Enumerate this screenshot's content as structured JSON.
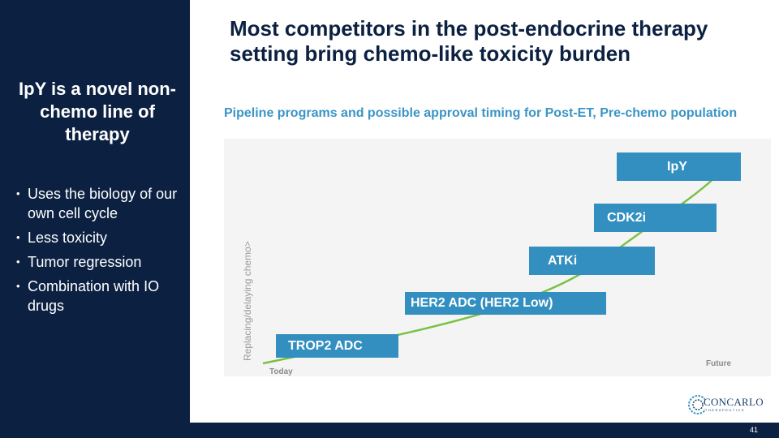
{
  "sidebar": {
    "heading": "IpY is a novel non-chemo line of therapy",
    "bullets": [
      "Uses the biology of our own cell cycle",
      "Less toxicity",
      "Tumor regression",
      "Combination with IO drugs"
    ]
  },
  "title": "Most competitors in the post-endocrine therapy setting bring chemo-like  toxicity burden",
  "chart": {
    "title": "Pipeline programs and possible approval timing for Post-ET,  Pre-chemo population",
    "y_axis_label": "Replacing/delaying chemo>",
    "x_start_label": "Today",
    "x_end_label": "Future",
    "programs": [
      "TROP2  ADC",
      "HER2 ADC  (HER2 Low)",
      "ATKi",
      "CDK2i",
      "IpY"
    ]
  },
  "logo": {
    "name": "CONCARLO",
    "tagline": "THERAPEUTICS"
  },
  "slide_number": "41",
  "colors": {
    "navy": "#0c2142",
    "accent_blue": "#338fbf",
    "curve_green": "#7ac143"
  }
}
